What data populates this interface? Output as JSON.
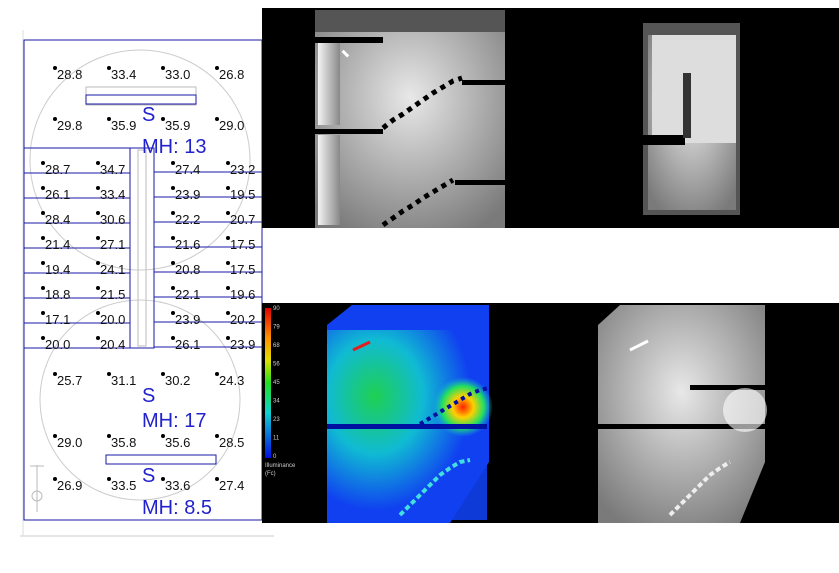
{
  "plan": {
    "top_rows": [
      [
        "28.8",
        "33.4",
        "33.0",
        "26.8"
      ],
      [
        "29.8",
        "35.9",
        "35.9",
        "29.0"
      ]
    ],
    "band_left": [
      [
        "28.7",
        "34.7"
      ],
      [
        "26.1",
        "33.4"
      ],
      [
        "28.4",
        "30.6"
      ],
      [
        "21.4",
        "27.1"
      ],
      [
        "19.4",
        "24.1"
      ],
      [
        "18.8",
        "21.5"
      ],
      [
        "17.1",
        "20.0"
      ],
      [
        "20.0",
        "20.4"
      ]
    ],
    "band_right": [
      [
        "27.4",
        "23.2"
      ],
      [
        "23.9",
        "19.5"
      ],
      [
        "22.2",
        "20.7"
      ],
      [
        "21.6",
        "17.5"
      ],
      [
        "20.8",
        "17.5"
      ],
      [
        "22.1",
        "19.6"
      ],
      [
        "23.9",
        "20.2"
      ],
      [
        "26.1",
        "23.9"
      ]
    ],
    "bottom_rows": [
      [
        "25.7",
        "31.1",
        "30.2",
        "24.3"
      ],
      [
        "29.0",
        "35.8",
        "35.6",
        "28.5"
      ],
      [
        "26.9",
        "33.5",
        "33.6",
        "27.4"
      ]
    ],
    "luminaires": [
      {
        "symbol": "S",
        "mh": "MH: 13"
      },
      {
        "symbol": "S",
        "mh": "MH: 17"
      },
      {
        "symbol": "S",
        "mh": "MH: 8.5"
      }
    ],
    "line_color": "#1a1aa8"
  },
  "legend": {
    "ticks": [
      "90",
      "79",
      "68",
      "56",
      "45",
      "34",
      "23",
      "11",
      "0"
    ],
    "title_line1": "Illuminance",
    "title_line2": "(Fc)"
  }
}
